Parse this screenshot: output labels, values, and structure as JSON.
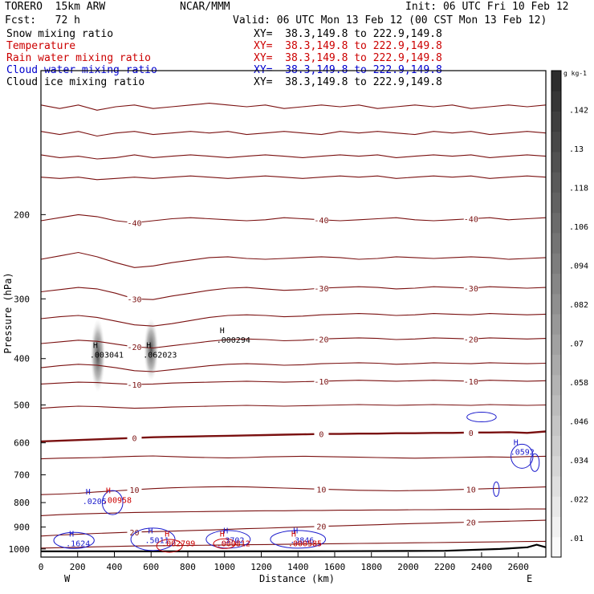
{
  "header": {
    "model": "TORERO  15km ARW",
    "org": "NCAR/MMM",
    "init": "Init: 06 UTC Fri 10 Feb 12",
    "fcst": "Fcst:   72 h",
    "valid": "Valid: 06 UTC Mon 13 Feb 12 (00 CST Mon 13 Feb 12)"
  },
  "legend": [
    {
      "label": "Snow mixing ratio",
      "xy": "XY=  38.3,149.8 to 222.9,149.8",
      "color": "#000000"
    },
    {
      "label": "Temperature",
      "xy": "XY=  38.3,149.8 to 222.9,149.8",
      "color": "#cc0000"
    },
    {
      "label": "Rain water mixing ratio",
      "xy": "XY=  38.3,149.8 to 222.9,149.8",
      "color": "#cc0000"
    },
    {
      "label": "Cloud water mixing ratio",
      "xy": "XY=  38.3,149.8 to 222.9,149.8",
      "color": "#0000cc"
    },
    {
      "label": "Cloud ice mixing ratio",
      "xy": "XY=  38.3,149.8 to 222.9,149.8",
      "color": "#000000"
    }
  ],
  "chart_data": {
    "type": "cross-section",
    "xlabel": "Distance (km)",
    "ylabel": "Pressure (hPa)",
    "x_ticks": [
      0,
      200,
      400,
      600,
      800,
      1000,
      1200,
      1400,
      1600,
      1800,
      2000,
      2200,
      2400,
      2600
    ],
    "y_ticks": [
      200,
      300,
      400,
      500,
      600,
      700,
      800,
      900,
      1000
    ],
    "xlim": [
      0,
      2750
    ],
    "ylim": [
      1040,
      100
    ],
    "west_label": "W",
    "east_label": "E",
    "colorbar": {
      "unit": "g kg-1",
      "ticks": [
        ".01",
        ".022",
        ".034",
        ".046",
        ".058",
        ".07",
        ".082",
        ".094",
        ".106",
        ".118",
        ".13",
        ".142"
      ],
      "min": 0.004,
      "max": 0.154
    },
    "temperature_contours": [
      {
        "t": -55,
        "label": "",
        "p": [
          118,
          120,
          118,
          121,
          119,
          118,
          120,
          119,
          118,
          117,
          118,
          119,
          118,
          120,
          119,
          118,
          119,
          118,
          120,
          119,
          118,
          119,
          118,
          120,
          119,
          118,
          119,
          118
        ]
      },
      {
        "t": -50,
        "label": "",
        "p": [
          134,
          136,
          134,
          137,
          135,
          134,
          136,
          135,
          134,
          135,
          134,
          136,
          135,
          134,
          135,
          136,
          134,
          135,
          134,
          135,
          136,
          134,
          135,
          134,
          136,
          135,
          134,
          135
        ]
      },
      {
        "t": -45,
        "label": "",
        "p": [
          150,
          152,
          151,
          153,
          152,
          150,
          152,
          151,
          150,
          151,
          152,
          151,
          150,
          151,
          152,
          151,
          150,
          151,
          150,
          152,
          151,
          150,
          151,
          150,
          152,
          151,
          150,
          151
        ]
      },
      {
        "t": -42,
        "label": "",
        "p": [
          167,
          168,
          167,
          169,
          168,
          167,
          168,
          167,
          166,
          167,
          168,
          167,
          166,
          167,
          168,
          167,
          166,
          167,
          166,
          168,
          167,
          166,
          167,
          166,
          168,
          167,
          166,
          167
        ]
      },
      {
        "t": -40,
        "label": "-40",
        "p": [
          206,
          203,
          200,
          202,
          206,
          208,
          206,
          204,
          203,
          204,
          205,
          206,
          205,
          203,
          204,
          205,
          206,
          205,
          204,
          203,
          205,
          206,
          205,
          204,
          203,
          205,
          204,
          203
        ]
      },
      {
        "t": -35,
        "label": "",
        "p": [
          248,
          244,
          240,
          245,
          252,
          258,
          256,
          252,
          249,
          246,
          245,
          247,
          248,
          247,
          246,
          245,
          246,
          248,
          247,
          245,
          246,
          247,
          246,
          245,
          246,
          248,
          247,
          246
        ]
      },
      {
        "t": -30,
        "label": "-30",
        "p": [
          290,
          287,
          284,
          286,
          292,
          300,
          301,
          296,
          292,
          288,
          285,
          284,
          286,
          288,
          287,
          285,
          284,
          283,
          284,
          286,
          285,
          283,
          284,
          285,
          283,
          284,
          285,
          284
        ]
      },
      {
        "t": -25,
        "label": "",
        "p": [
          330,
          327,
          325,
          328,
          334,
          340,
          342,
          338,
          333,
          328,
          325,
          324,
          325,
          327,
          326,
          324,
          323,
          322,
          323,
          325,
          324,
          322,
          323,
          324,
          322,
          323,
          324,
          323
        ]
      },
      {
        "t": -20,
        "label": "-20",
        "p": [
          372,
          369,
          366,
          368,
          373,
          378,
          380,
          376,
          372,
          368,
          365,
          364,
          365,
          367,
          366,
          364,
          363,
          362,
          363,
          365,
          364,
          362,
          363,
          364,
          362,
          363,
          364,
          363
        ]
      },
      {
        "t": -15,
        "label": "",
        "p": [
          418,
          414,
          411,
          413,
          418,
          424,
          426,
          422,
          418,
          414,
          411,
          410,
          411,
          413,
          412,
          410,
          409,
          408,
          409,
          411,
          410,
          408,
          409,
          410,
          408,
          409,
          410,
          409
        ]
      },
      {
        "t": -10,
        "label": "-10",
        "p": [
          452,
          450,
          448,
          449,
          451,
          453,
          452,
          450,
          449,
          448,
          447,
          446,
          447,
          448,
          447,
          446,
          445,
          444,
          445,
          446,
          445,
          444,
          445,
          446,
          444,
          445,
          446,
          445
        ]
      },
      {
        "t": -5,
        "label": "",
        "p": [
          508,
          505,
          503,
          504,
          506,
          508,
          507,
          505,
          504,
          503,
          502,
          501,
          502,
          503,
          502,
          501,
          500,
          499,
          500,
          501,
          500,
          499,
          500,
          501,
          499,
          500,
          501,
          500
        ]
      },
      {
        "t": 0,
        "label": "0",
        "p": [
          596,
          594,
          592,
          590,
          588,
          586,
          584,
          583,
          582,
          581,
          580,
          579,
          578,
          577,
          576,
          575,
          575,
          574,
          574,
          573,
          573,
          572,
          572,
          571,
          571,
          570,
          572,
          568
        ]
      },
      {
        "t": 5,
        "label": "",
        "p": [
          648,
          646,
          645,
          644,
          642,
          640,
          639,
          641,
          643,
          644,
          645,
          644,
          642,
          641,
          640,
          641,
          642,
          643,
          644,
          645,
          646,
          645,
          644,
          643,
          642,
          643,
          641,
          640
        ]
      },
      {
        "t": 10,
        "label": "10",
        "p": [
          770,
          768,
          765,
          760,
          756,
          752,
          748,
          745,
          743,
          742,
          741,
          742,
          744,
          746,
          748,
          750,
          752,
          754,
          755,
          756,
          755,
          754,
          752,
          750,
          748,
          746,
          744,
          742
        ]
      },
      {
        "t": 15,
        "label": "",
        "p": [
          852,
          848,
          845,
          843,
          841,
          839,
          838,
          837,
          836,
          835,
          834,
          833,
          832,
          832,
          831,
          831,
          830,
          830,
          829,
          829,
          828,
          828,
          827,
          827,
          826,
          826,
          825,
          825
        ]
      },
      {
        "t": 20,
        "label": "20",
        "p": [
          940,
          935,
          932,
          928,
          925,
          922,
          920,
          918,
          915,
          913,
          910,
          907,
          905,
          902,
          900,
          897,
          895,
          892,
          890,
          887,
          885,
          883,
          881,
          879,
          877,
          875,
          873,
          871
        ]
      },
      {
        "t": 25,
        "label": "",
        "p": [
          996,
          994,
          992,
          990,
          988,
          986,
          985,
          984,
          983,
          982,
          981,
          980,
          979,
          978,
          977,
          976,
          975,
          974,
          973,
          972,
          971,
          970,
          969,
          968,
          967,
          966,
          965,
          964
        ]
      }
    ],
    "snow_max_labels": [
      {
        "x": 310,
        "p": 395,
        "text": ".003041"
      },
      {
        "x": 600,
        "p": 395,
        "text": ".062023"
      },
      {
        "x": 1000,
        "p": 368,
        "text": ".000294"
      }
    ],
    "rain_max_labels": [
      {
        "x": 380,
        "p": 795,
        "text": ".00958"
      },
      {
        "x": 700,
        "p": 980,
        "text": ".002799"
      },
      {
        "x": 1000,
        "p": 980,
        "text": ".000812"
      },
      {
        "x": 1390,
        "p": 980,
        "text": ".000585"
      }
    ],
    "cloud_water_max_labels": [
      {
        "x": 270,
        "p": 800,
        "text": ".0205"
      },
      {
        "x": 180,
        "p": 980,
        "text": ".1624"
      },
      {
        "x": 610,
        "p": 965,
        "text": ".5011"
      },
      {
        "x": 1020,
        "p": 965,
        "text": ".3702"
      },
      {
        "x": 1400,
        "p": 965,
        "text": ".3846"
      },
      {
        "x": 2600,
        "p": 630,
        "text": ".0592"
      }
    ]
  }
}
